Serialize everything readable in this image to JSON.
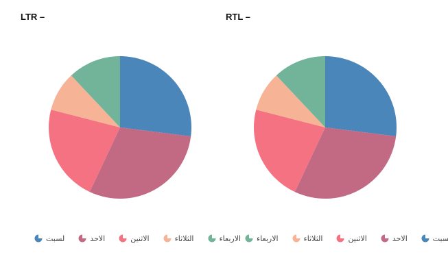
{
  "charts": {
    "ltr": {
      "title": "LTR –"
    },
    "rtl": {
      "title": "RTL –"
    }
  },
  "colors": {
    "c0": "#4a86b9",
    "c1": "#c26a83",
    "c2": "#f47281",
    "c3": "#f7b396",
    "c4": "#72b49a"
  },
  "chart_data": [
    {
      "type": "pie",
      "title": "LTR –",
      "categories": [
        "لسبت",
        "الاحد",
        "الاثنين",
        "الثلاثاء",
        "الاربعاء"
      ],
      "values": [
        27,
        30,
        22,
        9,
        12
      ],
      "legend": "bottom"
    },
    {
      "type": "pie",
      "title": "RTL –",
      "categories": [
        "لسبت",
        "الاحد",
        "الاثنين",
        "الثلاثاء",
        "الاربعاء"
      ],
      "values": [
        27,
        30,
        22,
        9,
        12
      ],
      "legend": "bottom"
    }
  ],
  "legend": {
    "ltr": [
      "لسبت",
      "الاحد",
      "الاثنين",
      "الثلاثاء",
      "الاربعاء"
    ],
    "rtl": [
      "الاربعاء",
      "الثلاثاء",
      "الاثنين",
      "الاحد",
      "لسبت"
    ]
  }
}
